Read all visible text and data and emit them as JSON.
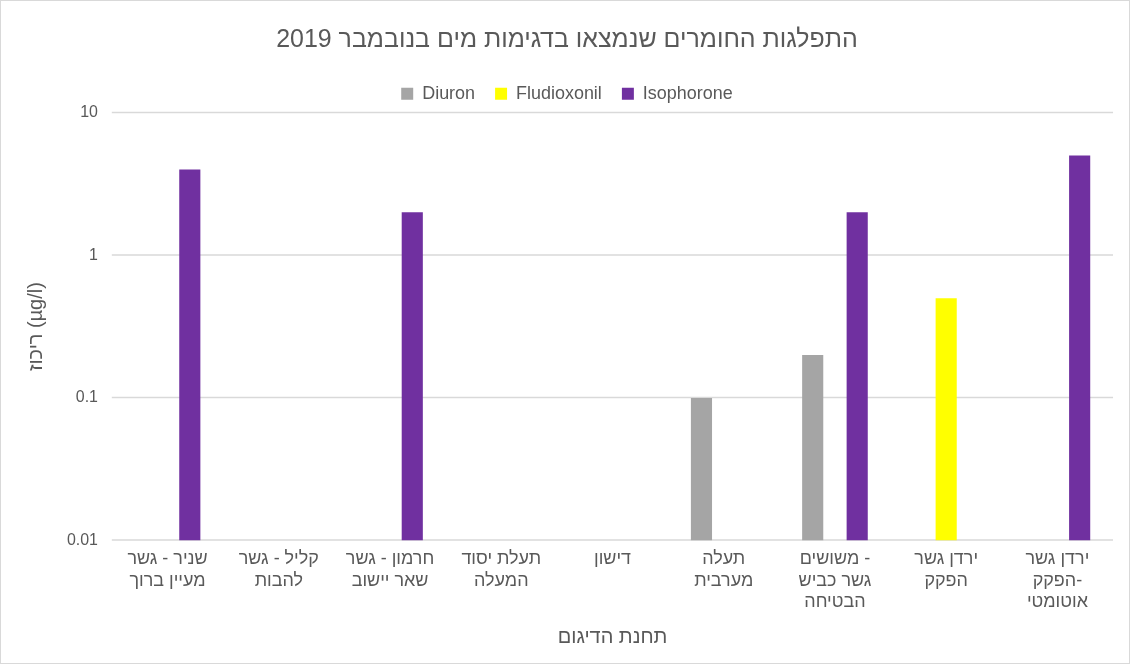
{
  "chart_data": {
    "type": "bar",
    "title": "התפלגות החומרים שנמצאו בדגימות מים בנובמבר 2019",
    "xlabel": "תחנת הדיגום",
    "ylabel": "ריכוז (µg/l)",
    "categories": [
      "שניר - גשר מעיין ברוך",
      "קליל - גשר להבות",
      "חרמון - גשר שאר יישוב",
      "תעלת יסוד המעלה",
      "דישון",
      "תעלה מערבית",
      "משושים - גשר כביש הבטיחה",
      "ירדן גשר הפקק",
      "ירדן גשר הפקק- אוטומטי"
    ],
    "series": [
      {
        "name": "Diuron",
        "color": "#a5a5a5",
        "values": [
          null,
          null,
          null,
          null,
          null,
          0.1,
          0.2,
          null,
          null
        ]
      },
      {
        "name": "Fludioxonil",
        "color": "#ffff00",
        "values": [
          null,
          null,
          null,
          null,
          null,
          null,
          null,
          0.5,
          null
        ]
      },
      {
        "name": "Isophorone",
        "color": "#7030a0",
        "values": [
          4,
          null,
          2,
          null,
          null,
          null,
          2,
          null,
          5
        ]
      }
    ],
    "log": true,
    "ylim": [
      0.01,
      10
    ],
    "yticks": [
      0.01,
      0.1,
      1,
      10
    ],
    "grid": "y",
    "legend": "top"
  }
}
